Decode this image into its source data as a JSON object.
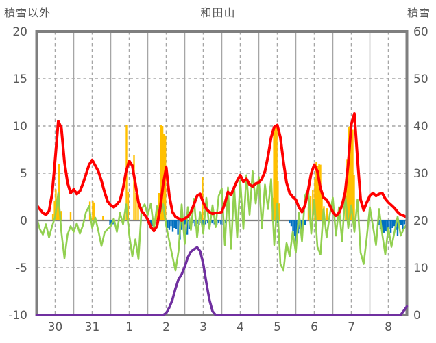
{
  "header": {
    "left_label": "積雪以外",
    "title": "和田山",
    "right_label": "積雪"
  },
  "chart_data": {
    "type": "line",
    "title": "和田山",
    "left_axis": {
      "label": "積雪以外",
      "min": -10,
      "max": 20,
      "ticks": [
        20,
        15,
        10,
        5,
        0,
        -5,
        -10
      ]
    },
    "right_axis": {
      "label": "積雪",
      "min": 0,
      "max": 60,
      "ticks": [
        60,
        50,
        40,
        30,
        20,
        10,
        0
      ]
    },
    "x_axis": {
      "day_labels": [
        "30",
        "31",
        "1",
        "2",
        "3",
        "4",
        "5",
        "6",
        "7",
        "8"
      ],
      "hours_total": 240,
      "grid": "solid at midnight, dashed at noon"
    },
    "colors": {
      "red_line": "#FF0000",
      "green_line": "#92D050",
      "orange_bars": "#FFC000",
      "blue_bars": "#0070C0",
      "purple_snow_line": "#7030A0",
      "frame": "#7F7F7F",
      "grid": "#A6A6A6",
      "text": "#595959"
    },
    "series": {
      "red_line": {
        "axis": "left",
        "step_hours": 2,
        "values": [
          1.6,
          1.2,
          0.8,
          0.6,
          1.0,
          2.8,
          6.5,
          10.5,
          9.8,
          6.2,
          4.0,
          2.9,
          3.3,
          2.8,
          3.1,
          3.9,
          4.9,
          5.9,
          6.4,
          5.8,
          5.2,
          4.2,
          3.0,
          2.0,
          1.6,
          1.4,
          1.7,
          2.1,
          3.4,
          5.2,
          6.3,
          5.8,
          3.9,
          1.9,
          1.0,
          0.6,
          0.1,
          -0.7,
          -1.1,
          -0.6,
          1.2,
          3.8,
          5.6,
          2.6,
          0.9,
          0.4,
          0.2,
          0.0,
          0.2,
          0.4,
          0.9,
          1.7,
          2.6,
          2.8,
          1.9,
          1.2,
          0.9,
          0.7,
          0.8,
          0.8,
          0.9,
          1.8,
          3.0,
          2.7,
          3.5,
          4.2,
          4.8,
          4.1,
          4.4,
          3.8,
          3.6,
          3.9,
          4.0,
          4.4,
          5.2,
          6.8,
          8.8,
          9.9,
          10.1,
          8.8,
          6.2,
          4.0,
          2.9,
          2.5,
          2.2,
          1.4,
          0.9,
          1.6,
          3.2,
          5.0,
          5.9,
          5.2,
          3.4,
          2.4,
          2.2,
          1.6,
          0.9,
          0.5,
          0.8,
          1.6,
          3.0,
          6.0,
          10.2,
          11.3,
          6.5,
          2.2,
          1.1,
          1.9,
          2.6,
          2.9,
          2.6,
          2.8,
          2.9,
          2.3,
          1.9,
          1.6,
          1.3,
          0.9,
          0.6,
          0.5,
          0.3
        ]
      },
      "green_line": {
        "axis": "left",
        "step_hours": 2,
        "values": [
          0.3,
          -0.9,
          -1.5,
          -0.4,
          -1.8,
          -0.6,
          0.4,
          2.9,
          -1.2,
          -4.0,
          -1.5,
          -0.6,
          -1.2,
          -0.3,
          -1.4,
          -0.5,
          0.9,
          1.5,
          -0.8,
          0.3,
          -1.1,
          -2.7,
          -1.3,
          -0.9,
          -0.6,
          0.2,
          -1.2,
          0.8,
          -0.4,
          1.7,
          -1.5,
          -3.8,
          -2.0,
          -4.1,
          1.2,
          1.7,
          0.6,
          1.8,
          -0.9,
          1.5,
          0.8,
          1.7,
          -0.6,
          -2.2,
          -3.8,
          -5.3,
          -3.2,
          1.7,
          -2.5,
          1.4,
          -1.0,
          2.3,
          -1.8,
          0.9,
          -1.4,
          2.4,
          -0.9,
          1.6,
          -0.7,
          2.6,
          3.4,
          -2.6,
          3.5,
          -3.0,
          3.6,
          -1.8,
          4.2,
          -0.9,
          4.8,
          0.6,
          5.2,
          1.8,
          4.6,
          -0.8,
          3.8,
          1.2,
          4.4,
          -2.6,
          1.8,
          -4.6,
          -5.3,
          -2.4,
          -3.8,
          -1.2,
          -3.4,
          0.8,
          -2.2,
          2.6,
          3.3,
          -1.4,
          2.2,
          -2.8,
          -3.6,
          1.2,
          -1.8,
          0.6,
          2.4,
          -1.6,
          1.4,
          -2.2,
          2.8,
          -0.8,
          1.6,
          -1.2,
          2.2,
          -3.4,
          -4.6,
          -1.8,
          1.4,
          -0.6,
          -2.6,
          1.2,
          -1.4,
          -3.6,
          -0.8,
          -2.8,
          -1.2,
          0.4,
          -1.6,
          -0.9,
          -0.4
        ]
      },
      "purple_snow_line": {
        "axis": "right",
        "unit": "cm",
        "step_hours": 2,
        "values": [
          0,
          0,
          0,
          0,
          0,
          0,
          0,
          0,
          0,
          0,
          0,
          0,
          0,
          0,
          0,
          0,
          0,
          0,
          0,
          0,
          0,
          0,
          0,
          0,
          0,
          0,
          0,
          0,
          0,
          0,
          0,
          0,
          0,
          0,
          0,
          0,
          0,
          0,
          0,
          0,
          0,
          0,
          0.4,
          1.6,
          3.2,
          5.6,
          7.6,
          8.6,
          10.2,
          12.2,
          13.4,
          13.9,
          14.3,
          13.5,
          10.8,
          6.8,
          3.2,
          0.8,
          0,
          0,
          0,
          0,
          0,
          0,
          0,
          0,
          0,
          0,
          0,
          0,
          0,
          0,
          0,
          0,
          0,
          0,
          0,
          0,
          0,
          0,
          0,
          0,
          0,
          0,
          0,
          0,
          0,
          0,
          0,
          0,
          0,
          0,
          0,
          0,
          0,
          0,
          0,
          0,
          0,
          0,
          0,
          0,
          0,
          0,
          0,
          0,
          0,
          0,
          0,
          0,
          0,
          0,
          0,
          0,
          0,
          0,
          0,
          0,
          0,
          0.9,
          1.8
        ]
      },
      "orange_bars": {
        "axis": "left",
        "points": [
          [
            10.5,
            0.7
          ],
          [
            11.6,
            2.1
          ],
          [
            12.4,
            3.3
          ],
          [
            13.3,
            2.0
          ],
          [
            14.4,
            6.0
          ],
          [
            16,
            1.0
          ],
          [
            22,
            0.9
          ],
          [
            34.5,
            2.0
          ],
          [
            36.4,
            2.1
          ],
          [
            37.3,
            1.9
          ],
          [
            43,
            0.5
          ],
          [
            58.2,
            10.1
          ],
          [
            59.3,
            3.0
          ],
          [
            63.1,
            6.9
          ],
          [
            64.4,
            2.9
          ],
          [
            65.8,
            2.7
          ],
          [
            78,
            1.5
          ],
          [
            79.3,
            2.9
          ],
          [
            80.7,
            10.1
          ],
          [
            81.6,
            10.0
          ],
          [
            82.5,
            9.2
          ],
          [
            83.4,
            9.0
          ],
          [
            107.5,
            4.6
          ],
          [
            152.9,
            2.4
          ],
          [
            153.8,
            9.9
          ],
          [
            154.7,
            10.1
          ],
          [
            155.6,
            9.9
          ],
          [
            156.4,
            4.2
          ],
          [
            157.3,
            1.8
          ],
          [
            176.2,
            1.4
          ],
          [
            177.6,
            2.6
          ],
          [
            179,
            3.2
          ],
          [
            180.4,
            4.4
          ],
          [
            181.3,
            6.2
          ],
          [
            182.2,
            5.8
          ],
          [
            183.1,
            6.0
          ],
          [
            184,
            5.9
          ],
          [
            184.9,
            3.0
          ],
          [
            186.2,
            1.5
          ],
          [
            188.2,
            1.3
          ],
          [
            200.4,
            2.6
          ],
          [
            201.3,
            6.5
          ],
          [
            202.2,
            9.9
          ],
          [
            203.1,
            10.0
          ],
          [
            204,
            9.8
          ],
          [
            204.9,
            9.6
          ],
          [
            205.8,
            4.8
          ]
        ]
      },
      "blue_bars": {
        "axis": "left",
        "points": [
          [
            47.6,
            -0.5
          ],
          [
            48.5,
            -0.55
          ],
          [
            49.4,
            -0.4
          ],
          [
            73.3,
            -0.5
          ],
          [
            74.2,
            -0.65
          ],
          [
            75.1,
            -0.6
          ],
          [
            76,
            -0.45
          ],
          [
            83.8,
            -0.4
          ],
          [
            84.9,
            -0.8
          ],
          [
            86,
            -1.0
          ],
          [
            87.1,
            -0.6
          ],
          [
            88.2,
            -1.2
          ],
          [
            89.3,
            -0.8
          ],
          [
            90.4,
            -0.9
          ],
          [
            91.6,
            -1.5
          ],
          [
            92.9,
            -2.0
          ],
          [
            94,
            -1.0
          ],
          [
            95.1,
            -0.6
          ],
          [
            96.2,
            -0.4
          ],
          [
            97.6,
            -1.5
          ],
          [
            98.9,
            -0.9
          ],
          [
            100,
            -0.5
          ],
          [
            101.3,
            -0.3
          ],
          [
            102.7,
            -0.6
          ],
          [
            104,
            -0.35
          ],
          [
            105.3,
            -0.5
          ],
          [
            106.7,
            -0.3
          ],
          [
            108,
            -0.5
          ],
          [
            109.5,
            -0.4
          ],
          [
            111,
            -0.3
          ],
          [
            112.4,
            -0.45
          ],
          [
            113.8,
            -0.3
          ],
          [
            115.2,
            -0.4
          ],
          [
            116.7,
            -0.5
          ],
          [
            118,
            -0.3
          ],
          [
            119.5,
            -0.4
          ],
          [
            121,
            -0.5
          ],
          [
            122.5,
            -0.3
          ],
          [
            156.2,
            -0.3
          ],
          [
            164,
            -0.3
          ],
          [
            165.1,
            -0.6
          ],
          [
            166.2,
            -1.1
          ],
          [
            167.3,
            -1.6
          ],
          [
            168.4,
            -2.2
          ],
          [
            169.6,
            -1.4
          ],
          [
            170.7,
            -0.9
          ],
          [
            171.8,
            -1.2
          ],
          [
            172.9,
            -0.7
          ],
          [
            174,
            -0.5
          ],
          [
            221.8,
            -0.5
          ],
          [
            222.9,
            -0.9
          ],
          [
            224,
            -1.2
          ],
          [
            225.1,
            -1.3
          ],
          [
            226.2,
            -1.1
          ],
          [
            227.3,
            -1.2
          ],
          [
            228.4,
            -0.9
          ],
          [
            229.6,
            -1.3
          ],
          [
            230.7,
            -0.8
          ],
          [
            231.8,
            -0.6
          ],
          [
            232.9,
            -1.0
          ],
          [
            234,
            -1.6
          ],
          [
            235.1,
            -0.8
          ],
          [
            236.2,
            -0.5
          ],
          [
            237.3,
            -0.9
          ],
          [
            238.4,
            -0.4
          ]
        ]
      }
    }
  }
}
